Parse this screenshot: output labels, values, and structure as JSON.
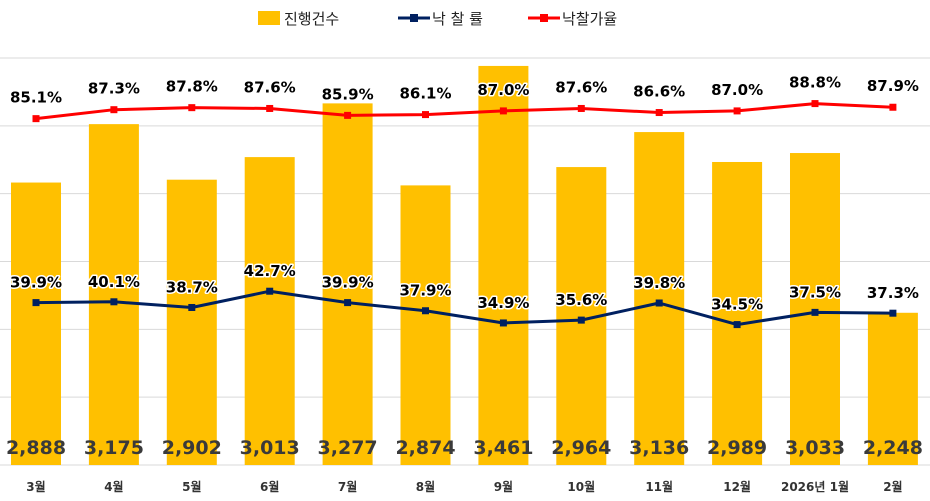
{
  "colors": {
    "bar": "#FFC000",
    "rate_line": "#002060",
    "price_rate_line": "#FF0000",
    "grid": "#d9d9d9"
  },
  "legend": {
    "bar": "진행건수",
    "rate": "낙 찰 률",
    "price_rate": "낙찰가율"
  },
  "chart_data": {
    "type": "bar",
    "title": "",
    "categories": [
      "3월",
      "4월",
      "5월",
      "6월",
      "7월",
      "8월",
      "9월",
      "10월",
      "11월",
      "12월",
      "2026년 1월",
      "2월"
    ],
    "y_left": [
      1500,
      3500
    ],
    "y_right": [
      0,
      100
    ],
    "grid": true,
    "legend_position": "top-center",
    "series": [
      {
        "name": "진행건수",
        "type": "bar",
        "axis": "left",
        "values": [
          2888,
          3175,
          2902,
          3013,
          3277,
          2874,
          3461,
          2964,
          3136,
          2989,
          3033,
          2248
        ],
        "labels": [
          "2,888",
          "3,175",
          "2,902",
          "3,013",
          "3,277",
          "2,874",
          "3,461",
          "2,964",
          "3,136",
          "2,989",
          "3,033",
          "2,248"
        ]
      },
      {
        "name": "낙 찰 률",
        "type": "line",
        "axis": "right",
        "values": [
          39.9,
          40.1,
          38.7,
          42.7,
          39.9,
          37.9,
          34.9,
          35.6,
          39.8,
          34.5,
          37.5,
          37.3
        ],
        "labels": [
          "39.9%",
          "40.1%",
          "38.7%",
          "42.7%",
          "39.9%",
          "37.9%",
          "34.9%",
          "35.6%",
          "39.8%",
          "34.5%",
          "37.5%",
          "37.3%"
        ]
      },
      {
        "name": "낙찰가율",
        "type": "line",
        "axis": "right",
        "values": [
          85.1,
          87.3,
          87.8,
          87.6,
          85.9,
          86.1,
          87.0,
          87.6,
          86.6,
          87.0,
          88.8,
          87.9
        ],
        "labels": [
          "85.1%",
          "87.3%",
          "87.8%",
          "87.6%",
          "85.9%",
          "86.1%",
          "87.0%",
          "87.6%",
          "86.6%",
          "87.0%",
          "88.8%",
          "87.9%"
        ]
      }
    ]
  }
}
